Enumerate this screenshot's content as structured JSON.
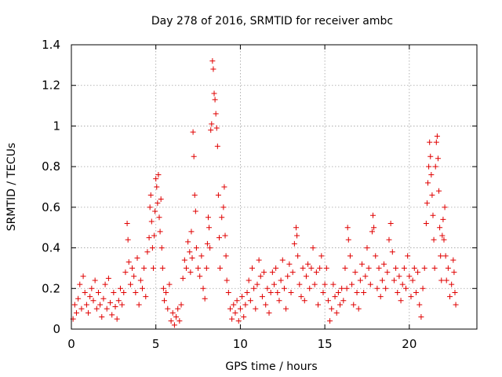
{
  "chart_data": {
    "type": "scatter",
    "title": "Day 278 of 2016, SRMTID for receiver ambc",
    "xlabel": "GPS time / hours",
    "ylabel": "SRMTID / TECUs",
    "xlim": [
      0,
      24
    ],
    "ylim": [
      0,
      1.4
    ],
    "xticks": [
      0,
      5,
      10,
      15,
      20
    ],
    "xtick_labels": [
      "0",
      "5",
      "10",
      "15",
      "20"
    ],
    "yticks": [
      0,
      0.2,
      0.4,
      0.6,
      0.8,
      1.0,
      1.2,
      1.4
    ],
    "ytick_labels": [
      "0",
      "0.2",
      "0.4",
      "0.6",
      "0.8",
      "1",
      "1.2",
      "1.4"
    ],
    "grid": true,
    "marker": "+",
    "color": "#e00000",
    "series": [
      {
        "name": "SRMTID",
        "points": [
          [
            0.1,
            0.05
          ],
          [
            0.2,
            0.12
          ],
          [
            0.3,
            0.08
          ],
          [
            0.4,
            0.15
          ],
          [
            0.5,
            0.22
          ],
          [
            0.6,
            0.1
          ],
          [
            0.7,
            0.26
          ],
          [
            0.8,
            0.18
          ],
          [
            0.9,
            0.12
          ],
          [
            1.0,
            0.08
          ],
          [
            1.1,
            0.16
          ],
          [
            1.2,
            0.2
          ],
          [
            1.3,
            0.14
          ],
          [
            1.4,
            0.24
          ],
          [
            1.5,
            0.1
          ],
          [
            1.6,
            0.18
          ],
          [
            1.7,
            0.12
          ],
          [
            1.8,
            0.06
          ],
          [
            1.9,
            0.15
          ],
          [
            2.0,
            0.22
          ],
          [
            2.1,
            0.1
          ],
          [
            2.2,
            0.25
          ],
          [
            2.3,
            0.13
          ],
          [
            2.4,
            0.07
          ],
          [
            2.5,
            0.18
          ],
          [
            2.6,
            0.11
          ],
          [
            2.7,
            0.05
          ],
          [
            2.8,
            0.14
          ],
          [
            2.9,
            0.2
          ],
          [
            3.0,
            0.12
          ],
          [
            3.1,
            0.18
          ],
          [
            3.2,
            0.28
          ],
          [
            3.3,
            0.52
          ],
          [
            3.35,
            0.44
          ],
          [
            3.4,
            0.33
          ],
          [
            3.5,
            0.22
          ],
          [
            3.6,
            0.3
          ],
          [
            3.7,
            0.26
          ],
          [
            3.8,
            0.18
          ],
          [
            3.9,
            0.35
          ],
          [
            4.0,
            0.12
          ],
          [
            4.1,
            0.24
          ],
          [
            4.2,
            0.2
          ],
          [
            4.3,
            0.3
          ],
          [
            4.4,
            0.16
          ],
          [
            4.5,
            0.38
          ],
          [
            4.6,
            0.45
          ],
          [
            4.65,
            0.6
          ],
          [
            4.7,
            0.66
          ],
          [
            4.75,
            0.53
          ],
          [
            4.8,
            0.4
          ],
          [
            4.85,
            0.3
          ],
          [
            4.9,
            0.46
          ],
          [
            4.95,
            0.58
          ],
          [
            5.0,
            0.74
          ],
          [
            5.05,
            0.7
          ],
          [
            5.1,
            0.62
          ],
          [
            5.15,
            0.76
          ],
          [
            5.2,
            0.55
          ],
          [
            5.25,
            0.48
          ],
          [
            5.3,
            0.64
          ],
          [
            5.35,
            0.4
          ],
          [
            5.4,
            0.3
          ],
          [
            5.45,
            0.2
          ],
          [
            5.5,
            0.14
          ],
          [
            5.6,
            0.18
          ],
          [
            5.7,
            0.1
          ],
          [
            5.8,
            0.22
          ],
          [
            5.9,
            0.04
          ],
          [
            6.0,
            0.08
          ],
          [
            6.1,
            0.02
          ],
          [
            6.2,
            0.06
          ],
          [
            6.3,
            0.1
          ],
          [
            6.4,
            0.04
          ],
          [
            6.5,
            0.12
          ],
          [
            6.6,
            0.25
          ],
          [
            6.7,
            0.34
          ],
          [
            6.8,
            0.3
          ],
          [
            6.9,
            0.43
          ],
          [
            7.0,
            0.38
          ],
          [
            7.05,
            0.28
          ],
          [
            7.1,
            0.48
          ],
          [
            7.15,
            0.35
          ],
          [
            7.2,
            0.97
          ],
          [
            7.25,
            0.85
          ],
          [
            7.3,
            0.66
          ],
          [
            7.35,
            0.58
          ],
          [
            7.4,
            0.4
          ],
          [
            7.5,
            0.3
          ],
          [
            7.6,
            0.26
          ],
          [
            7.7,
            0.36
          ],
          [
            7.8,
            0.2
          ],
          [
            7.9,
            0.15
          ],
          [
            8.0,
            0.3
          ],
          [
            8.05,
            0.42
          ],
          [
            8.1,
            0.55
          ],
          [
            8.15,
            0.5
          ],
          [
            8.2,
            0.4
          ],
          [
            8.25,
            0.98
          ],
          [
            8.3,
            1.01
          ],
          [
            8.35,
            1.32
          ],
          [
            8.4,
            1.28
          ],
          [
            8.45,
            1.16
          ],
          [
            8.5,
            1.13
          ],
          [
            8.55,
            1.06
          ],
          [
            8.6,
            0.99
          ],
          [
            8.65,
            0.9
          ],
          [
            8.7,
            0.66
          ],
          [
            8.75,
            0.45
          ],
          [
            8.8,
            0.3
          ],
          [
            8.9,
            0.55
          ],
          [
            9.0,
            0.6
          ],
          [
            9.05,
            0.7
          ],
          [
            9.1,
            0.46
          ],
          [
            9.15,
            0.36
          ],
          [
            9.2,
            0.24
          ],
          [
            9.3,
            0.18
          ],
          [
            9.4,
            0.1
          ],
          [
            9.5,
            0.05
          ],
          [
            9.6,
            0.12
          ],
          [
            9.7,
            0.08
          ],
          [
            9.8,
            0.14
          ],
          [
            9.9,
            0.04
          ],
          [
            10.0,
            0.1
          ],
          [
            10.1,
            0.16
          ],
          [
            10.2,
            0.06
          ],
          [
            10.3,
            0.12
          ],
          [
            10.4,
            0.18
          ],
          [
            10.5,
            0.24
          ],
          [
            10.6,
            0.14
          ],
          [
            10.7,
            0.3
          ],
          [
            10.8,
            0.2
          ],
          [
            10.9,
            0.1
          ],
          [
            11.0,
            0.22
          ],
          [
            11.1,
            0.34
          ],
          [
            11.2,
            0.26
          ],
          [
            11.3,
            0.16
          ],
          [
            11.4,
            0.28
          ],
          [
            11.5,
            0.12
          ],
          [
            11.6,
            0.2
          ],
          [
            11.7,
            0.08
          ],
          [
            11.8,
            0.18
          ],
          [
            11.9,
            0.28
          ],
          [
            12.0,
            0.22
          ],
          [
            12.1,
            0.3
          ],
          [
            12.2,
            0.18
          ],
          [
            12.3,
            0.14
          ],
          [
            12.4,
            0.24
          ],
          [
            12.5,
            0.34
          ],
          [
            12.6,
            0.2
          ],
          [
            12.7,
            0.1
          ],
          [
            12.8,
            0.26
          ],
          [
            12.9,
            0.32
          ],
          [
            13.0,
            0.18
          ],
          [
            13.1,
            0.28
          ],
          [
            13.2,
            0.42
          ],
          [
            13.3,
            0.5
          ],
          [
            13.35,
            0.46
          ],
          [
            13.4,
            0.36
          ],
          [
            13.5,
            0.22
          ],
          [
            13.6,
            0.16
          ],
          [
            13.7,
            0.3
          ],
          [
            13.8,
            0.14
          ],
          [
            13.9,
            0.26
          ],
          [
            14.0,
            0.32
          ],
          [
            14.1,
            0.2
          ],
          [
            14.2,
            0.3
          ],
          [
            14.3,
            0.4
          ],
          [
            14.4,
            0.22
          ],
          [
            14.5,
            0.28
          ],
          [
            14.6,
            0.12
          ],
          [
            14.7,
            0.3
          ],
          [
            14.8,
            0.36
          ],
          [
            14.9,
            0.18
          ],
          [
            15.0,
            0.22
          ],
          [
            15.1,
            0.3
          ],
          [
            15.2,
            0.14
          ],
          [
            15.3,
            0.04
          ],
          [
            15.4,
            0.1
          ],
          [
            15.5,
            0.22
          ],
          [
            15.6,
            0.16
          ],
          [
            15.7,
            0.08
          ],
          [
            15.8,
            0.18
          ],
          [
            15.9,
            0.12
          ],
          [
            16.0,
            0.2
          ],
          [
            16.1,
            0.14
          ],
          [
            16.2,
            0.3
          ],
          [
            16.3,
            0.2
          ],
          [
            16.35,
            0.5
          ],
          [
            16.4,
            0.44
          ],
          [
            16.5,
            0.36
          ],
          [
            16.6,
            0.22
          ],
          [
            16.7,
            0.12
          ],
          [
            16.8,
            0.28
          ],
          [
            16.9,
            0.18
          ],
          [
            17.0,
            0.1
          ],
          [
            17.1,
            0.24
          ],
          [
            17.2,
            0.32
          ],
          [
            17.3,
            0.18
          ],
          [
            17.4,
            0.26
          ],
          [
            17.5,
            0.4
          ],
          [
            17.6,
            0.3
          ],
          [
            17.7,
            0.22
          ],
          [
            17.8,
            0.48
          ],
          [
            17.85,
            0.56
          ],
          [
            17.9,
            0.5
          ],
          [
            18.0,
            0.36
          ],
          [
            18.1,
            0.2
          ],
          [
            18.2,
            0.3
          ],
          [
            18.3,
            0.16
          ],
          [
            18.4,
            0.24
          ],
          [
            18.5,
            0.32
          ],
          [
            18.6,
            0.2
          ],
          [
            18.7,
            0.28
          ],
          [
            18.8,
            0.44
          ],
          [
            18.9,
            0.52
          ],
          [
            19.0,
            0.38
          ],
          [
            19.1,
            0.24
          ],
          [
            19.2,
            0.3
          ],
          [
            19.3,
            0.18
          ],
          [
            19.4,
            0.26
          ],
          [
            19.5,
            0.14
          ],
          [
            19.6,
            0.22
          ],
          [
            19.7,
            0.3
          ],
          [
            19.8,
            0.2
          ],
          [
            19.9,
            0.36
          ],
          [
            20.0,
            0.26
          ],
          [
            20.1,
            0.16
          ],
          [
            20.2,
            0.24
          ],
          [
            20.3,
            0.3
          ],
          [
            20.4,
            0.18
          ],
          [
            20.5,
            0.28
          ],
          [
            20.6,
            0.12
          ],
          [
            20.7,
            0.06
          ],
          [
            20.8,
            0.2
          ],
          [
            20.9,
            0.3
          ],
          [
            21.0,
            0.52
          ],
          [
            21.05,
            0.62
          ],
          [
            21.1,
            0.72
          ],
          [
            21.15,
            0.8
          ],
          [
            21.2,
            0.92
          ],
          [
            21.25,
            0.85
          ],
          [
            21.3,
            0.76
          ],
          [
            21.35,
            0.66
          ],
          [
            21.4,
            0.56
          ],
          [
            21.45,
            0.44
          ],
          [
            21.5,
            0.3
          ],
          [
            21.55,
            0.8
          ],
          [
            21.6,
            0.92
          ],
          [
            21.65,
            0.95
          ],
          [
            21.7,
            0.84
          ],
          [
            21.75,
            0.68
          ],
          [
            21.8,
            0.5
          ],
          [
            21.85,
            0.36
          ],
          [
            21.9,
            0.24
          ],
          [
            21.95,
            0.46
          ],
          [
            22.0,
            0.54
          ],
          [
            22.05,
            0.44
          ],
          [
            22.1,
            0.6
          ],
          [
            22.15,
            0.36
          ],
          [
            22.2,
            0.24
          ],
          [
            22.3,
            0.3
          ],
          [
            22.4,
            0.16
          ],
          [
            22.5,
            0.22
          ],
          [
            22.6,
            0.34
          ],
          [
            22.65,
            0.28
          ],
          [
            22.7,
            0.18
          ],
          [
            22.75,
            0.12
          ]
        ]
      }
    ]
  }
}
